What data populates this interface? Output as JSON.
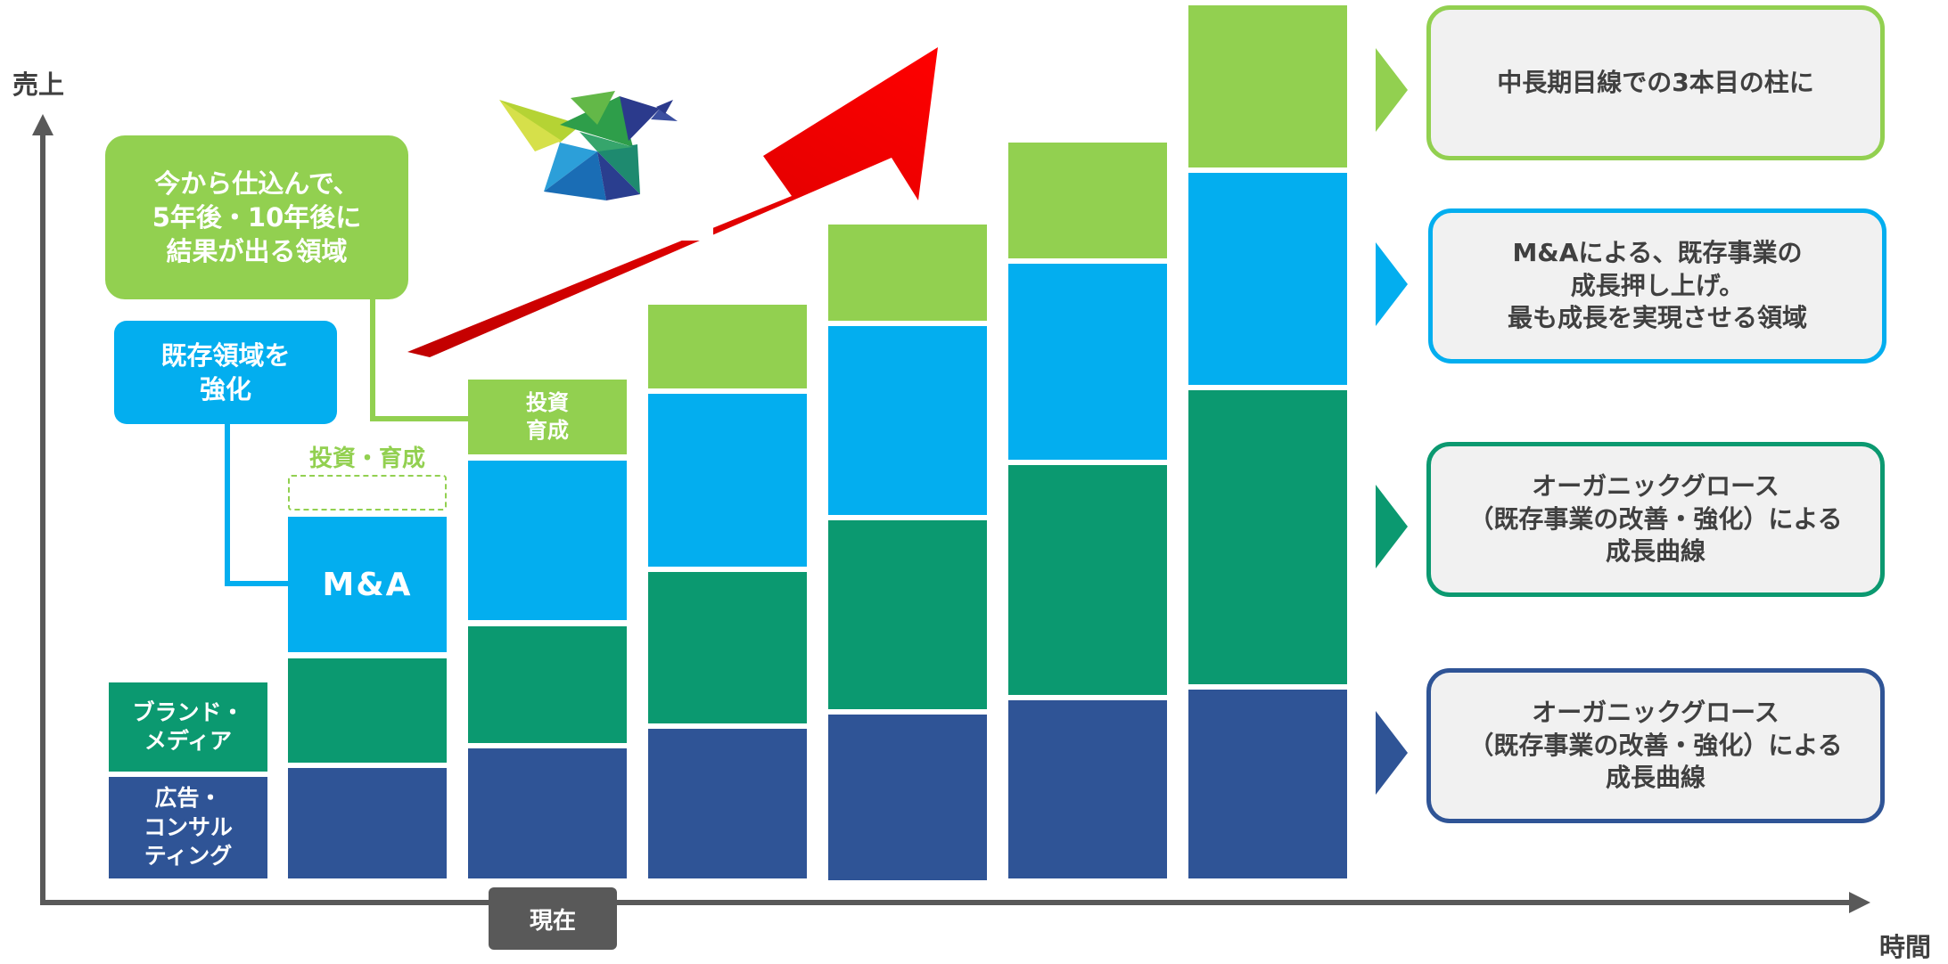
{
  "axes": {
    "y_label": "売上",
    "x_label": "時間",
    "now_label": "現在"
  },
  "callouts": {
    "future": [
      "今から仕込んで、",
      "5年後・10年後に",
      "結果が出る領域"
    ],
    "strengthen": [
      "既存領域を",
      "強化"
    ]
  },
  "bars": {
    "investment_label": "投資・育成",
    "ma_label": "M&A",
    "small_invest": [
      "投資",
      "育成"
    ]
  },
  "side_labels": {
    "brand_media": [
      "ブランド・",
      "メディア"
    ],
    "ad_consulting": [
      "広告・",
      "コンサル",
      "ティング"
    ]
  },
  "legend": [
    {
      "lines": [
        "中長期目線での3本目の柱に"
      ],
      "color": "#92d050"
    },
    {
      "lines": [
        "M&Aによる、既存事業の",
        "成長押し上げ。",
        "最も成長を実現させる領域"
      ],
      "color": "#03aeef"
    },
    {
      "lines": [
        "オーガニックグロース",
        "（既存事業の改善・強化）による",
        "成長曲線"
      ],
      "color": "#0b9970"
    },
    {
      "lines": [
        "オーガニックグロース",
        "（既存事業の改善・強化）による",
        "成長曲線"
      ],
      "color": "#2f5496"
    }
  ],
  "icons": {
    "bird": "origami-bird-logo",
    "growth": "red-arrow-up-right"
  }
}
